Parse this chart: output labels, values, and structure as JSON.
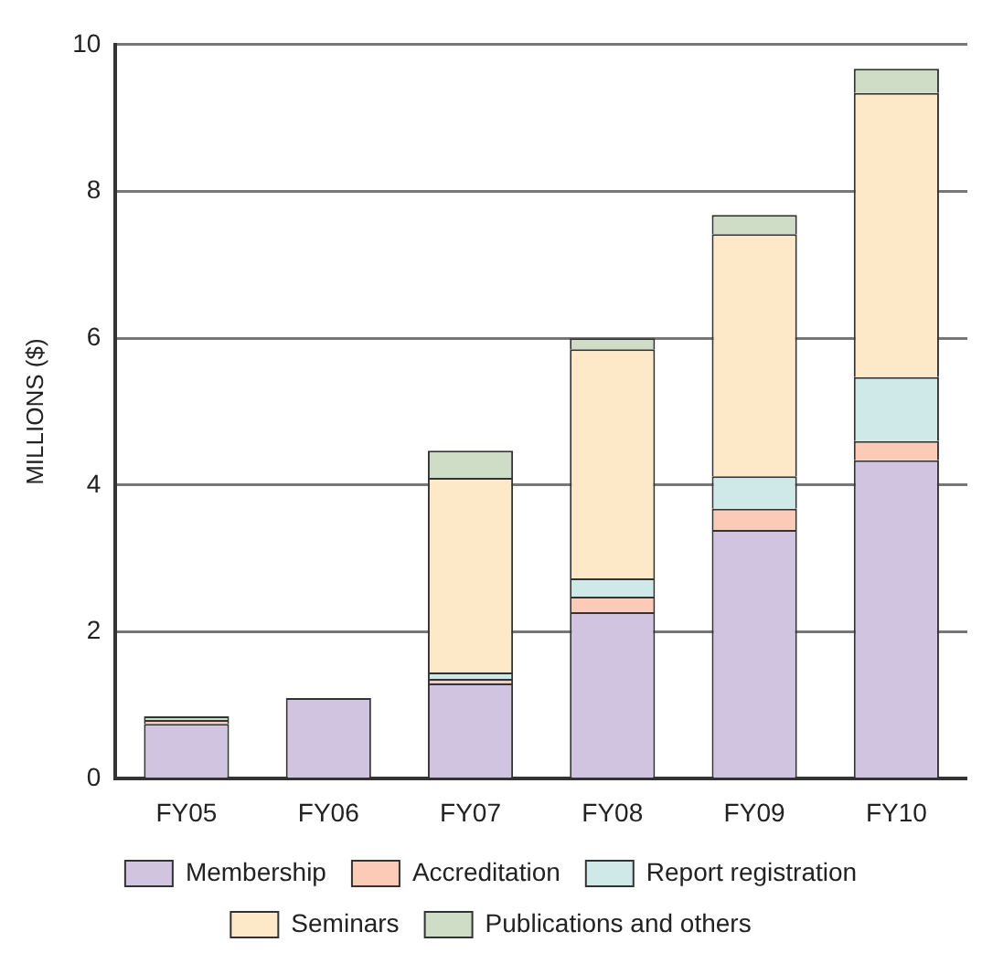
{
  "chart_data": {
    "type": "bar",
    "stacked": true,
    "ylabel": "MILLIONS ($)",
    "categories": [
      "FY05",
      "FY06",
      "FY07",
      "FY08",
      "FY09",
      "FY10"
    ],
    "series": [
      {
        "name": "Membership",
        "color": "#d1c4e0",
        "values": [
          0.75,
          1.1,
          1.3,
          2.27,
          3.39,
          4.34
        ]
      },
      {
        "name": "Accreditation",
        "color": "#fccbb8",
        "values": [
          0.05,
          0,
          0.06,
          0.21,
          0.29,
          0.26
        ]
      },
      {
        "name": "Report registration",
        "color": "#cfe8e8",
        "values": [
          0,
          0,
          0.09,
          0.25,
          0.44,
          0.87
        ]
      },
      {
        "name": "Seminars",
        "color": "#fde8c8",
        "values": [
          0,
          0,
          2.65,
          3.12,
          3.3,
          3.87
        ]
      },
      {
        "name": "Publications and others",
        "color": "#cfdcc6",
        "values": [
          0.05,
          0,
          0.37,
          0.15,
          0.26,
          0.33
        ]
      }
    ],
    "ylim": [
      0,
      10
    ],
    "yticks": [
      0,
      2,
      4,
      6,
      8,
      10
    ],
    "grid": "y",
    "legend": "bottom"
  }
}
